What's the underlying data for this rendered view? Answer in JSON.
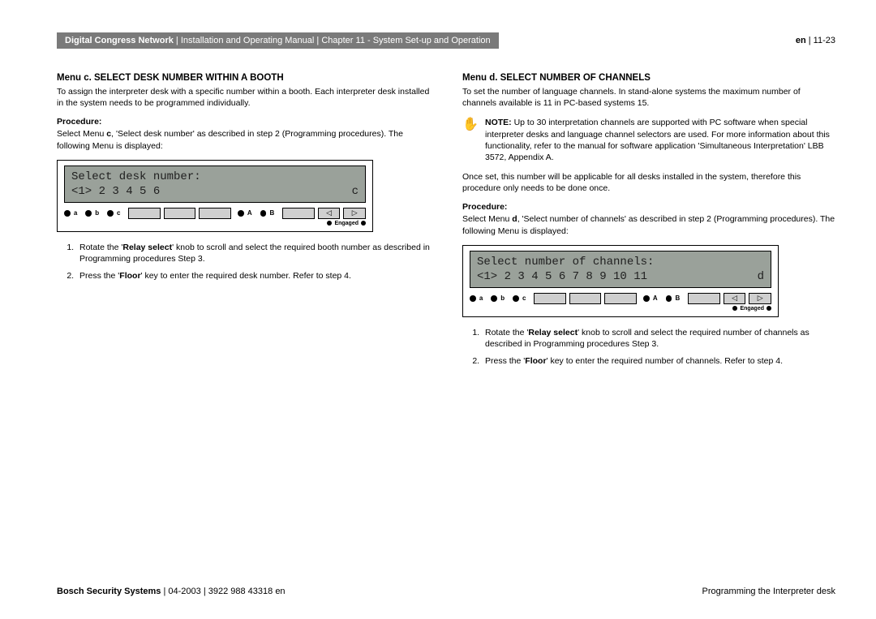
{
  "header": {
    "product": "Digital Congress Network",
    "manual": "Installation and Operating Manual",
    "chapter": "Chapter 11 - System Set-up and Operation",
    "lang": "en",
    "page": "11-23"
  },
  "left": {
    "title": "Menu c.  SELECT DESK NUMBER WITHIN A BOOTH",
    "intro": "To assign the interpreter desk with a specific number within a booth.  Each interpreter desk installed in the system needs to be programmed individually.",
    "proc_label": "Procedure:",
    "proc_intro_pre": "Select Menu ",
    "proc_intro_bold": "c",
    "proc_intro_post": ", 'Select desk number' as described in step 2 (Programming procedures). The following Menu is displayed:",
    "lcd": {
      "line1": "Select desk number:",
      "line2_left": "<1> 2 3 4 5 6",
      "line2_right": "c"
    },
    "steps": [
      {
        "pre": "Rotate the '",
        "bold": "Relay select",
        "post": "' knob to scroll and select the required booth number as described in Programming procedures Step 3."
      },
      {
        "pre": "Press the '",
        "bold": "Floor",
        "post": "' key to enter the required desk number.  Refer to step 4."
      }
    ]
  },
  "right": {
    "title": "Menu d.  SELECT NUMBER OF CHANNELS",
    "intro": "To set the number of language channels. In stand-alone systems the maximum number of channels available is 11 in PC-based systems 15.",
    "note_label": "NOTE:",
    "note_text": "Up to 30 interpretation channels are supported with PC software when special interpreter desks and language channel selectors are used. For more information about this functionality, refer to the manual for software application 'Simultaneous Interpretation' LBB 3572, Appendix A.",
    "para2": "Once set, this number will be applicable for all desks installed in the system, therefore this procedure only needs to be done once.",
    "proc_label": "Procedure:",
    "proc_intro_pre": "Select Menu ",
    "proc_intro_bold": "d",
    "proc_intro_post": ", 'Select number of channels' as described in step 2 (Programming procedures). The following Menu is displayed:",
    "lcd": {
      "line1": "Select number of channels:",
      "line2_left": "<1> 2 3 4 5 6 7 8 9 10 11",
      "line2_right": "d"
    },
    "steps": [
      {
        "pre": "Rotate the '",
        "bold": "Relay select",
        "post": "' knob to scroll and select the required number of channels as described in Programming procedures Step 3."
      },
      {
        "pre": "Press the '",
        "bold": "Floor",
        "post": "' key to enter the required number of channels. Refer to step 4."
      }
    ]
  },
  "panel": {
    "knobs": [
      "a",
      "b",
      "c"
    ],
    "ab": [
      "A",
      "B"
    ],
    "engaged": "Engaged"
  },
  "footer": {
    "company": "Bosch Security Systems",
    "date": "04-2003",
    "docnum": "3922 988 43318 en",
    "section": "Programming the Interpreter desk"
  },
  "colors": {
    "header_bg": "#7a7a7a",
    "lcd_bg": "#9aa19a",
    "btn_bg": "#cfcfcf"
  }
}
